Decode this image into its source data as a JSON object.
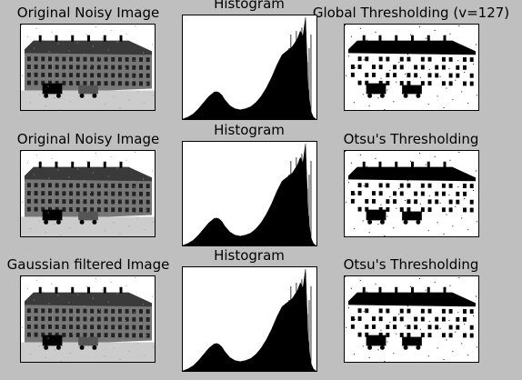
{
  "colors": {
    "background": "#bfbfbf",
    "panel_border": "#000000",
    "histogram_fill": "#000000"
  },
  "rows": [
    {
      "image_title": "Original Noisy Image",
      "histogram_title": "Histogram",
      "threshold_title": "Global Thresholding (v=127)"
    },
    {
      "image_title": "Original Noisy Image",
      "histogram_title": "Histogram",
      "threshold_title": "Otsu's Thresholding"
    },
    {
      "image_title": "Gaussian filtered Image",
      "histogram_title": "Histogram",
      "threshold_title": "Otsu's Thresholding"
    }
  ],
  "chart_data": [
    {
      "type": "area",
      "title": "Histogram",
      "xlabel": "",
      "ylabel": "",
      "xlim": [
        0,
        256
      ],
      "ylim": [
        0,
        1
      ],
      "grid": false,
      "x": [
        0,
        10,
        20,
        30,
        40,
        50,
        60,
        65,
        70,
        75,
        80,
        90,
        100,
        110,
        120,
        130,
        140,
        150,
        160,
        170,
        180,
        190,
        200,
        210,
        220,
        225,
        230,
        235,
        240,
        245,
        250,
        255
      ],
      "values": [
        0,
        0.02,
        0.05,
        0.1,
        0.16,
        0.22,
        0.26,
        0.265,
        0.255,
        0.23,
        0.19,
        0.13,
        0.1,
        0.09,
        0.1,
        0.12,
        0.16,
        0.22,
        0.3,
        0.4,
        0.52,
        0.62,
        0.66,
        0.7,
        0.78,
        0.85,
        0.8,
        0.98,
        0.3,
        0.08,
        0.02,
        0
      ]
    }
  ]
}
